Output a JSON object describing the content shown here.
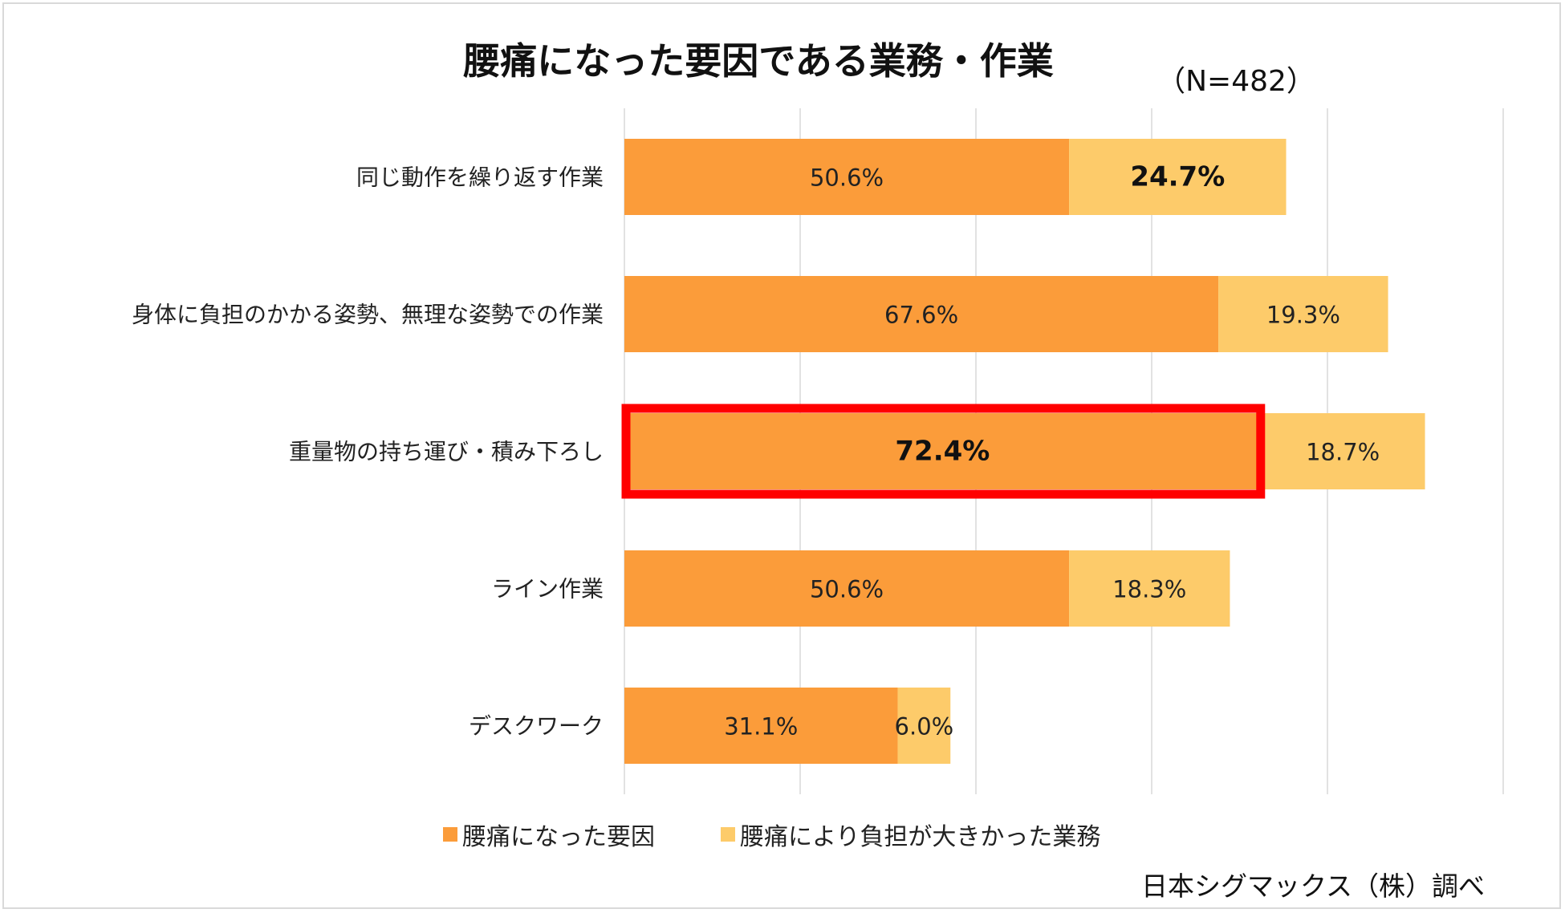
{
  "colors": {
    "series1": "#fb9c3a",
    "series2": "#fdcb6a",
    "highlight": "#ff0000",
    "grid": "#d9d9d9"
  },
  "chart_data": {
    "type": "bar",
    "orientation": "horizontal",
    "stacked": true,
    "title": "腰痛になった要因である業務・作業",
    "subtitle": "（N=482）",
    "categories": [
      "同じ動作を繰り返す作業",
      "身体に負担のかかる姿勢、無理な姿勢での作業",
      "重量物の持ち運び・積み下ろし",
      "ライン作業",
      "デスクワーク"
    ],
    "series": [
      {
        "name": "腰痛になった要因",
        "values": [
          50.6,
          67.6,
          72.4,
          50.6,
          31.1
        ],
        "labels": [
          "50.6%",
          "67.6%",
          "72.4%",
          "50.6%",
          "31.1%"
        ],
        "color": "#fb9c3a"
      },
      {
        "name": "腰痛により負担が大きかった業務",
        "values": [
          24.7,
          19.3,
          18.7,
          18.3,
          6.0
        ],
        "labels": [
          "24.7%",
          "19.3%",
          "18.7%",
          "18.3%",
          "6.0%"
        ],
        "color": "#fdcb6a"
      }
    ],
    "bold_labels": [
      {
        "series": 1,
        "category": 0
      },
      {
        "series": 0,
        "category": 2
      }
    ],
    "highlighted": {
      "series": 0,
      "category": 2
    },
    "xlim": [
      0,
      100
    ],
    "grid": true,
    "legend_position": "bottom",
    "source": "日本シグマックス（株）調べ"
  }
}
